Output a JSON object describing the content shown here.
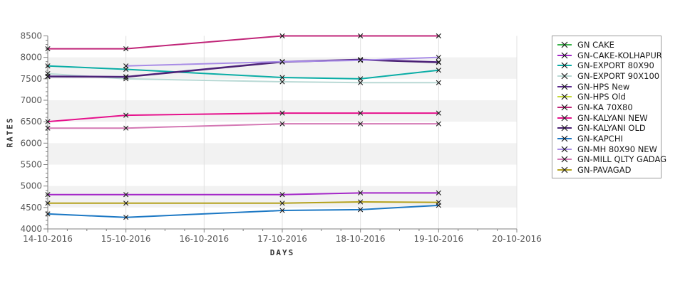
{
  "chart_data": {
    "type": "line",
    "title": "",
    "xlabel": "DAYS",
    "ylabel": "RATES",
    "x_tick_labels": [
      "14-10-2016",
      "15-10-2016",
      "16-10-2016",
      "17-10-2016",
      "18-10-2016",
      "19-10-2016",
      "20-10-2016"
    ],
    "ylim": [
      4000,
      8500
    ],
    "y_major_step": 500,
    "y_minor_step": 100,
    "grid": true,
    "legend_position": "right",
    "band_colors": [
      "#ffffff",
      "#f2f2f2"
    ],
    "marker": "x",
    "marker_color": "#1a1a1a",
    "series": [
      {
        "name": "GN CAKE",
        "color": "#3cb44b",
        "points": []
      },
      {
        "name": "GN-CAKE-KOLHAPUR",
        "color": "#a428c8",
        "points": [
          [
            "14-10-2016",
            4800
          ],
          [
            "15-10-2016",
            4800
          ],
          [
            "17-10-2016",
            4800
          ],
          [
            "18-10-2016",
            4840
          ],
          [
            "19-10-2016",
            4840
          ]
        ]
      },
      {
        "name": "GN-EXPORT 80X90",
        "color": "#0aada6",
        "points": [
          [
            "14-10-2016",
            7800
          ],
          [
            "15-10-2016",
            7720
          ],
          [
            "17-10-2016",
            7530
          ],
          [
            "18-10-2016",
            7500
          ],
          [
            "19-10-2016",
            7700
          ]
        ]
      },
      {
        "name": "GN-EXPORT 90X100",
        "color": "#b9d9d5",
        "points": [
          [
            "14-10-2016",
            7620
          ],
          [
            "15-10-2016",
            7500
          ],
          [
            "17-10-2016",
            7430
          ],
          [
            "18-10-2016",
            7410
          ],
          [
            "19-10-2016",
            7410
          ]
        ]
      },
      {
        "name": "GN-HPS New",
        "color": "#5b2b8e",
        "points": [
          [
            "14-10-2016",
            7560
          ],
          [
            "15-10-2016",
            7550
          ],
          [
            "17-10-2016",
            7900
          ],
          [
            "18-10-2016",
            7950
          ],
          [
            "19-10-2016",
            7890
          ]
        ]
      },
      {
        "name": "GN-HPS Old",
        "color": "#c6d936",
        "points": []
      },
      {
        "name": "GN-KA 70X80",
        "color": "#c02578",
        "points": [
          [
            "14-10-2016",
            8200
          ],
          [
            "15-10-2016",
            8200
          ],
          [
            "17-10-2016",
            8500
          ],
          [
            "18-10-2016",
            8500
          ],
          [
            "19-10-2016",
            8500
          ]
        ]
      },
      {
        "name": "GN-KALYANI NEW",
        "color": "#e6118c",
        "points": [
          [
            "14-10-2016",
            6500
          ],
          [
            "15-10-2016",
            6650
          ],
          [
            "17-10-2016",
            6700
          ],
          [
            "18-10-2016",
            6700
          ],
          [
            "19-10-2016",
            6700
          ]
        ]
      },
      {
        "name": "GN-KALYANI OLD",
        "color": "#4a2174",
        "points": [
          [
            "14-10-2016",
            7550
          ],
          [
            "15-10-2016",
            7540
          ],
          [
            "17-10-2016",
            7890
          ],
          [
            "18-10-2016",
            7940
          ],
          [
            "19-10-2016",
            7880
          ]
        ]
      },
      {
        "name": "GN-KAPCHI",
        "color": "#1c78c4",
        "points": [
          [
            "14-10-2016",
            4350
          ],
          [
            "15-10-2016",
            4270
          ],
          [
            "17-10-2016",
            4430
          ],
          [
            "18-10-2016",
            4450
          ],
          [
            "19-10-2016",
            4550
          ]
        ]
      },
      {
        "name": "GN-MH 80X90 NEW",
        "color": "#a88ce6",
        "points": [
          [
            "15-10-2016",
            7800
          ],
          [
            "17-10-2016",
            7900
          ],
          [
            "18-10-2016",
            7930
          ],
          [
            "19-10-2016",
            8000
          ]
        ]
      },
      {
        "name": "GN-MILL QLTY GADAG",
        "color": "#d478b4",
        "points": [
          [
            "14-10-2016",
            6350
          ],
          [
            "15-10-2016",
            6350
          ],
          [
            "17-10-2016",
            6450
          ],
          [
            "18-10-2016",
            6450
          ],
          [
            "19-10-2016",
            6450
          ]
        ]
      },
      {
        "name": "GN-PAVAGAD",
        "color": "#b3a11c",
        "points": [
          [
            "14-10-2016",
            4600
          ],
          [
            "15-10-2016",
            4600
          ],
          [
            "17-10-2016",
            4600
          ],
          [
            "18-10-2016",
            4630
          ],
          [
            "19-10-2016",
            4620
          ]
        ]
      }
    ]
  }
}
